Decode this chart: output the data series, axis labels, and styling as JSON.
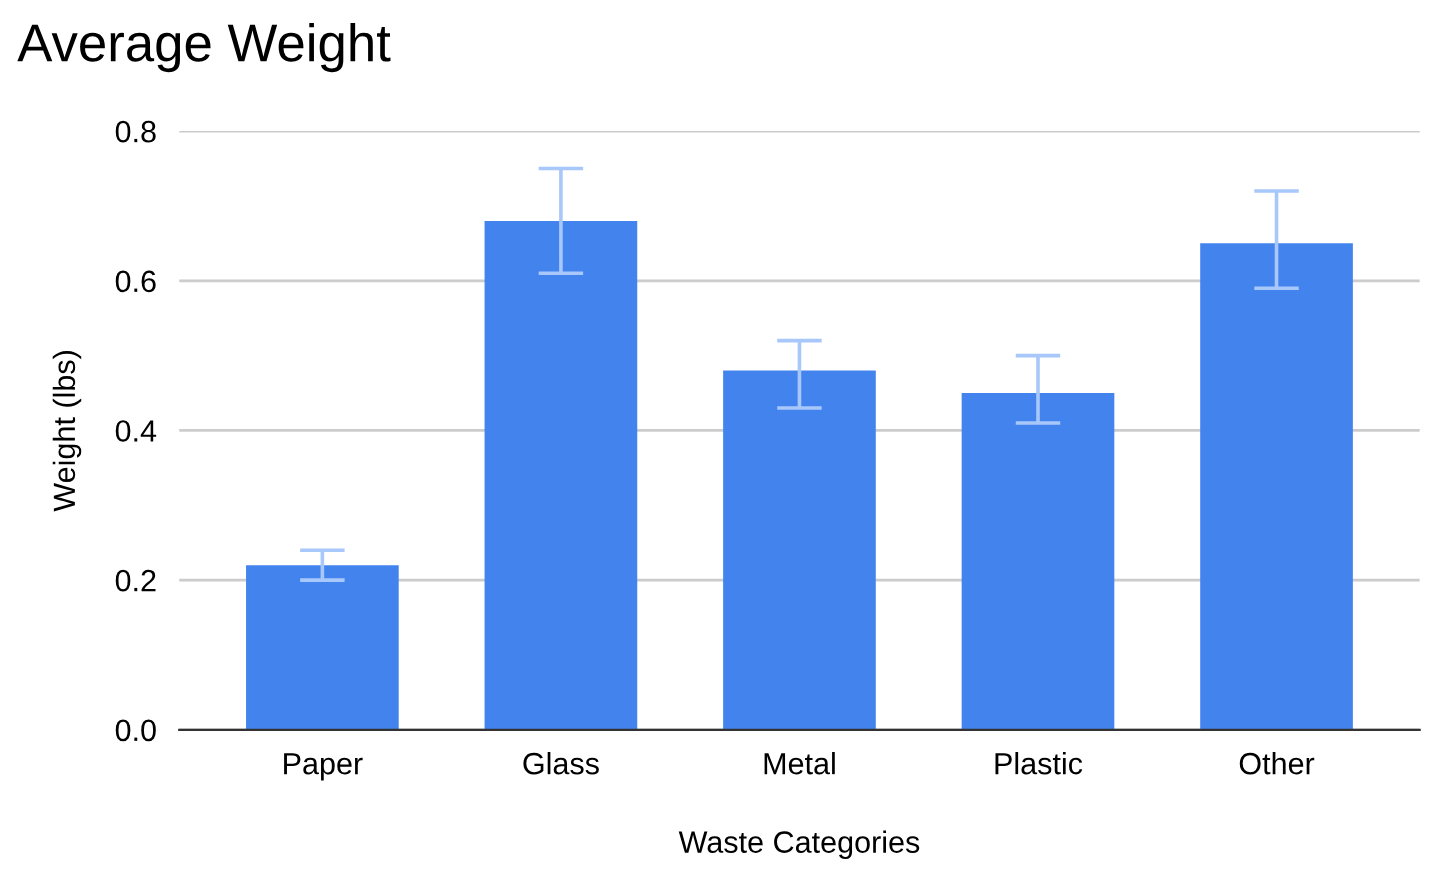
{
  "chart_data": {
    "type": "bar",
    "title": "Average Weight",
    "xlabel": "Waste Categories",
    "ylabel": "Weight (lbs)",
    "categories": [
      "Paper",
      "Glass",
      "Metal",
      "Plastic",
      "Other"
    ],
    "values": [
      0.22,
      0.68,
      0.48,
      0.45,
      0.65
    ],
    "errors": [
      [
        0.2,
        0.24
      ],
      [
        0.61,
        0.75
      ],
      [
        0.43,
        0.52
      ],
      [
        0.41,
        0.5
      ],
      [
        0.59,
        0.72
      ]
    ],
    "color": "#4383ee",
    "ylim": [
      0,
      0.8
    ],
    "yticks": [
      {
        "value": 0,
        "label": "0.0"
      },
      0.2,
      0.4,
      0.6,
      0.8
    ],
    "grid": "y",
    "legend": false
  }
}
